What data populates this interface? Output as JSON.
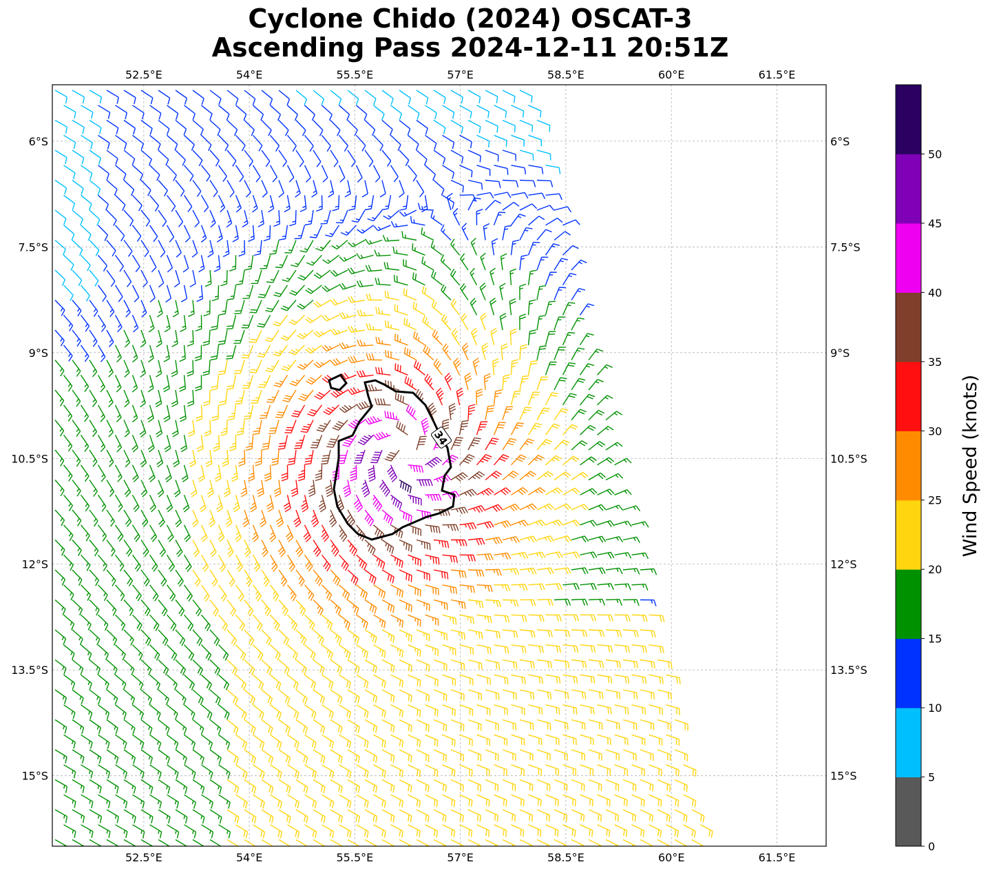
{
  "title": {
    "line1": "Cyclone Chido (2024) OSCAT-3",
    "line2": "Ascending Pass 2024-12-11 20:51Z"
  },
  "axes": {
    "lon_labels": [
      "52.5°E",
      "54°E",
      "55.5°E",
      "57°E",
      "58.5°E",
      "60°E",
      "61.5°E"
    ],
    "lat_labels": [
      "6°S",
      "7.5°S",
      "9°S",
      "10.5°S",
      "12°S",
      "13.5°S",
      "15°S"
    ],
    "lon_range": [
      51.2,
      62.2
    ],
    "lat_range": [
      -16.0,
      -5.2
    ]
  },
  "colorbar": {
    "label": "Wind Speed (knots)",
    "ticks": [
      "0",
      "5",
      "10",
      "15",
      "20",
      "25",
      "30",
      "35",
      "40",
      "45",
      "50"
    ],
    "bins": [
      {
        "min": 0,
        "max": 5,
        "color": "#595959"
      },
      {
        "min": 5,
        "max": 10,
        "color": "#00bfff"
      },
      {
        "min": 10,
        "max": 15,
        "color": "#0032ff"
      },
      {
        "min": 15,
        "max": 20,
        "color": "#009100"
      },
      {
        "min": 20,
        "max": 25,
        "color": "#ffd50f"
      },
      {
        "min": 25,
        "max": 30,
        "color": "#ff8c00"
      },
      {
        "min": 30,
        "max": 35,
        "color": "#ff0f0f"
      },
      {
        "min": 35,
        "max": 40,
        "color": "#7f3f2a"
      },
      {
        "min": 40,
        "max": 45,
        "color": "#f000f0"
      },
      {
        "min": 45,
        "max": 50,
        "color": "#8000b8"
      },
      {
        "min": 50,
        "max": 55,
        "color": "#2a0060"
      }
    ]
  },
  "contour": {
    "label": "34",
    "level_kt": 34,
    "color": "#000000"
  },
  "swath": {
    "corners_lonlat": [
      [
        51.2,
        -5.2
      ],
      [
        58.0,
        -5.2
      ],
      [
        60.5,
        -16.0
      ],
      [
        51.2,
        -16.0
      ]
    ]
  },
  "cyclone_center": {
    "lon": 56.2,
    "lat": -10.4
  }
}
